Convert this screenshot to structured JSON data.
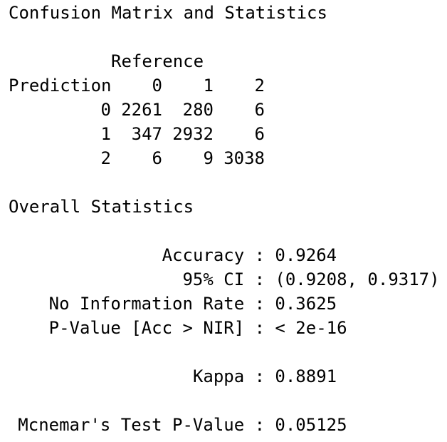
{
  "title": "Confusion Matrix and Statistics",
  "matrix": {
    "reference_label": "Reference",
    "prediction_label": "Prediction",
    "columns": [
      "0",
      "1",
      "2"
    ],
    "rows": [
      {
        "label": "0",
        "cells": [
          "2261",
          "280",
          "6"
        ]
      },
      {
        "label": "1",
        "cells": [
          "347",
          "2932",
          "6"
        ]
      },
      {
        "label": "2",
        "cells": [
          "6",
          "9",
          "3038"
        ]
      }
    ]
  },
  "overall": {
    "title": "Overall Statistics",
    "separator": ":",
    "stats": [
      {
        "label": "Accuracy",
        "value": "0.9264"
      },
      {
        "label": "95% CI",
        "value": "(0.9208, 0.9317)"
      },
      {
        "label": "No Information Rate",
        "value": "0.3625"
      },
      {
        "label": "P-Value [Acc > NIR]",
        "value": "< 2e-16"
      },
      {
        "label": "Kappa",
        "value": "0.8891"
      },
      {
        "label": "Mcnemar's Test P-Value",
        "value": "0.05125"
      }
    ]
  }
}
